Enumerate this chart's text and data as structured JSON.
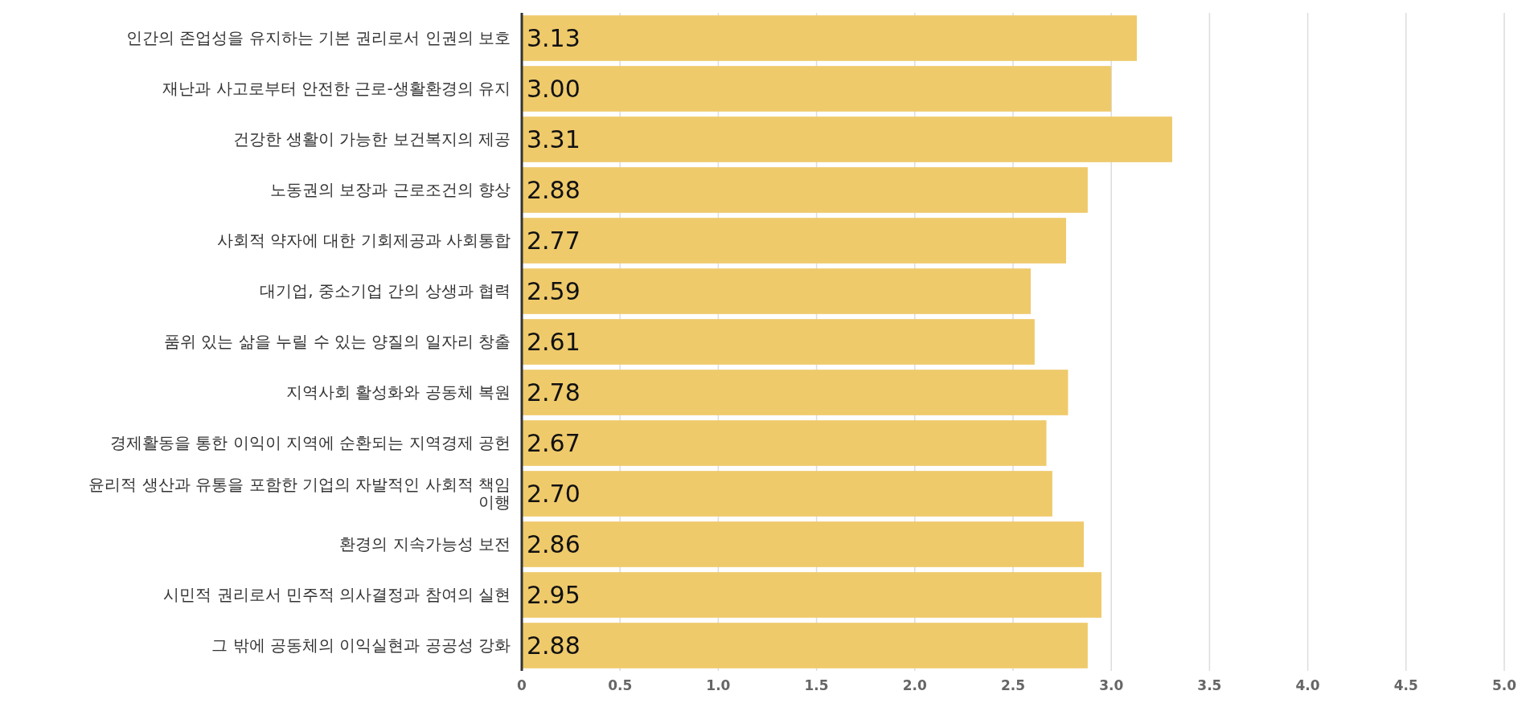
{
  "chart_data": {
    "type": "bar",
    "orientation": "horizontal",
    "categories": [
      "인간의 존업성을 유지하는 기본 권리로서 인권의 보호",
      "재난과 사고로부터 안전한 근로-생활환경의 유지",
      "건강한 생활이 가능한 보건복지의 제공",
      "노동권의 보장과 근로조건의 향상",
      "사회적 약자에 대한 기회제공과 사회통합",
      "대기업, 중소기업 간의 상생과 협력",
      "품위 있는 삶을 누릴 수 있는 양질의 일자리 창출",
      "지역사회 활성화와 공동체 복원",
      "경제활동을 통한 이익이 지역에 순환되는 지역경제 공헌",
      "윤리적 생산과 유통을 포함한 기업의 자발적인 사회적 책임 이행",
      "환경의 지속가능성 보전",
      "시민적 권리로서 민주적 의사결정과 참여의 실현",
      "그 밖에 공동체의 이익실현과 공공성 강화"
    ],
    "values": [
      3.13,
      3.0,
      3.31,
      2.88,
      2.77,
      2.59,
      2.61,
      2.78,
      2.67,
      2.7,
      2.86,
      2.95,
      2.88
    ],
    "color": "#efca6b",
    "value_labels": [
      "3.13",
      "3.00",
      "3.31",
      "2.88",
      "2.77",
      "2.59",
      "2.61",
      "2.78",
      "2.67",
      "2.70",
      "2.86",
      "2.95",
      "2.88"
    ],
    "xlim": [
      0,
      5
    ],
    "xticks": [
      0,
      {
        "value": 0.5,
        "label": "0.5"
      },
      {
        "value": 1,
        "label": "1.0"
      },
      {
        "value": 1.5,
        "label": "1.5"
      },
      {
        "value": 2,
        "label": "2.0"
      },
      {
        "value": 2.5,
        "label": "2.5"
      },
      {
        "value": 3,
        "label": "3.0"
      },
      {
        "value": 3.5,
        "label": "3.5"
      },
      {
        "value": 4,
        "label": "4.0"
      },
      {
        "value": 4.5,
        "label": "4.5"
      },
      {
        "value": 5,
        "label": "5.0"
      }
    ],
    "grid": "x"
  }
}
